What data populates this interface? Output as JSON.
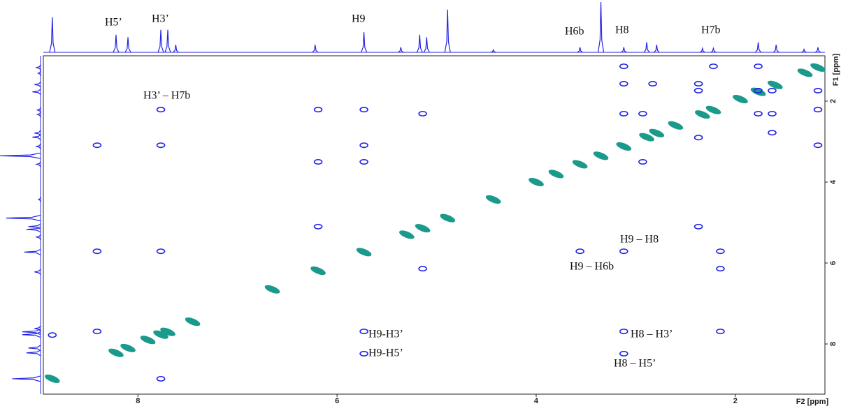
{
  "chart_data": {
    "type": "nmr2d",
    "x_label": "F2 [ppm]",
    "y_label": "F1 [ppm]",
    "xlim": [
      8.95,
      1.1
    ],
    "ylim": [
      0.88,
      9.24
    ],
    "xticks": [
      8,
      6,
      4,
      2
    ],
    "yticks": [
      2,
      4,
      6,
      8
    ],
    "projection": {
      "color": "#2323e6",
      "x": [
        8.86,
        8.22,
        8.1,
        7.77,
        7.7,
        7.62,
        6.22,
        5.73,
        5.36,
        5.17,
        5.1,
        4.89,
        4.43,
        3.56,
        3.35,
        3.12,
        2.89,
        2.79,
        2.33,
        2.22,
        1.77,
        1.59,
        1.31,
        1.17
      ],
      "values": [
        0.7,
        0.35,
        0.3,
        0.45,
        0.45,
        0.15,
        0.15,
        0.4,
        0.1,
        0.35,
        0.3,
        0.85,
        0.05,
        0.1,
        1.0,
        0.1,
        0.2,
        0.15,
        0.08,
        0.08,
        0.2,
        0.15,
        0.06,
        0.1
      ]
    },
    "series": [
      {
        "color": "#1a9a8a",
        "x": [
          8.86,
          8.22,
          8.1,
          7.9,
          7.77,
          7.7,
          7.45,
          6.65,
          6.19,
          5.73,
          5.3,
          5.14,
          4.89,
          4.43,
          4.0,
          3.8,
          3.56,
          3.35,
          3.12,
          2.89,
          2.79,
          2.6,
          2.33,
          2.22,
          1.95,
          1.77,
          1.6,
          1.3,
          1.17
        ],
        "values": [
          8.86,
          8.22,
          8.1,
          7.9,
          7.77,
          7.7,
          7.45,
          6.65,
          6.19,
          5.73,
          5.3,
          5.14,
          4.89,
          4.43,
          4.0,
          3.8,
          3.56,
          3.35,
          3.12,
          2.89,
          2.79,
          2.6,
          2.33,
          2.22,
          1.95,
          1.77,
          1.6,
          1.3,
          1.17
        ]
      },
      {
        "color": "#2323e6",
        "x": [
          8.41,
          8.41,
          8.41,
          8.86,
          7.77,
          7.77,
          7.77,
          7.77,
          6.19,
          6.19,
          6.19,
          5.73,
          5.73,
          5.73,
          5.73,
          5.73,
          5.14,
          5.14,
          3.56,
          3.12,
          3.12,
          3.12,
          3.12,
          3.12,
          3.12,
          2.93,
          2.83,
          2.93,
          2.37,
          2.37,
          2.37,
          2.37,
          2.15,
          2.15,
          2.15,
          2.22,
          1.77,
          1.77,
          1.77,
          1.63,
          1.63,
          1.63,
          1.17,
          1.17,
          1.17
        ],
        "values": [
          3.09,
          5.71,
          7.69,
          7.78,
          2.21,
          3.09,
          5.71,
          8.86,
          2.21,
          3.5,
          5.1,
          2.21,
          3.09,
          3.5,
          7.69,
          8.24,
          2.31,
          6.14,
          5.71,
          5.71,
          7.69,
          8.24,
          1.14,
          1.57,
          2.31,
          2.31,
          1.57,
          3.5,
          1.57,
          1.74,
          2.9,
          5.1,
          5.71,
          6.14,
          7.69,
          1.14,
          1.14,
          1.74,
          2.31,
          1.74,
          2.31,
          2.78,
          1.74,
          2.21,
          3.09
        ]
      }
    ],
    "annotations": [
      "H5’",
      "H3’",
      "H9",
      "H6b",
      "H8",
      "H7b",
      "H3’ – H7b",
      "H9 – H8",
      "H9  – H6b",
      "H9-H3’",
      "H9-H5’",
      "H8 – H3’",
      "H8 – H5’"
    ]
  }
}
